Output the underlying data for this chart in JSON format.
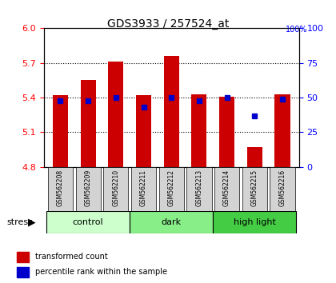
{
  "title": "GDS3933 / 257524_at",
  "samples": [
    "GSM562208",
    "GSM562209",
    "GSM562210",
    "GSM562211",
    "GSM562212",
    "GSM562213",
    "GSM562214",
    "GSM562215",
    "GSM562216"
  ],
  "bar_values": [
    5.42,
    5.55,
    5.71,
    5.42,
    5.76,
    5.43,
    5.41,
    4.97,
    5.43
  ],
  "percentile_values": [
    48,
    48,
    50,
    43,
    50,
    48,
    50,
    37,
    49
  ],
  "groups": [
    {
      "label": "control",
      "start": 0,
      "end": 3,
      "color": "#ccffcc"
    },
    {
      "label": "dark",
      "start": 3,
      "end": 6,
      "color": "#88ee88"
    },
    {
      "label": "high light",
      "start": 6,
      "end": 9,
      "color": "#44cc44"
    }
  ],
  "ylim_left": [
    4.8,
    6.0
  ],
  "ylim_right": [
    0,
    100
  ],
  "yticks_left": [
    4.8,
    5.1,
    5.4,
    5.7,
    6.0
  ],
  "yticks_right": [
    0,
    25,
    50,
    75,
    100
  ],
  "bar_color": "#cc0000",
  "dot_color": "#0000cc",
  "bar_width": 0.55,
  "stress_label": "stress",
  "legend_bar_label": "transformed count",
  "legend_dot_label": "percentile rank within the sample",
  "grid_yticks": [
    5.1,
    5.4,
    5.7
  ]
}
